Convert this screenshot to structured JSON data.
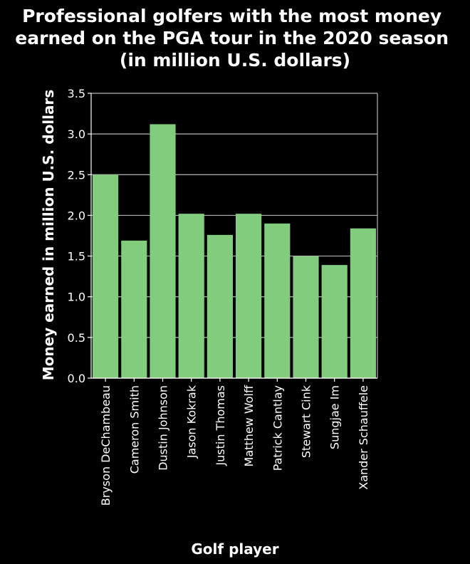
{
  "chart_data": {
    "type": "bar",
    "title": [
      "Professional golfers with the most money",
      "earned on the PGA tour in the 2020 season",
      "(in million U.S. dollars)"
    ],
    "xlabel": "Golf player",
    "ylabel": "Money earned in million U.S. dollars",
    "categories": [
      "Bryson DeChambeau",
      "Cameron Smith",
      "Dustin Johnson",
      "Jason Kokrak",
      "Justin Thomas",
      "Matthew Wolff",
      "Patrick Cantlay",
      "Stewart Cink",
      "Sungjae Im",
      "Xander Schauffele"
    ],
    "values": [
      2.5,
      1.69,
      3.12,
      2.02,
      1.76,
      2.02,
      1.9,
      1.5,
      1.39,
      1.84
    ],
    "ylim": [
      0,
      3.5
    ],
    "yticks": [
      "0.0",
      "0.5",
      "1.0",
      "1.5",
      "2.0",
      "2.5",
      "3.0",
      "3.5"
    ],
    "grid": true,
    "colors": {
      "background": "#000000",
      "bar": "#82cc7e",
      "grid": "#b5b5b5",
      "text": "#ffffff"
    }
  }
}
